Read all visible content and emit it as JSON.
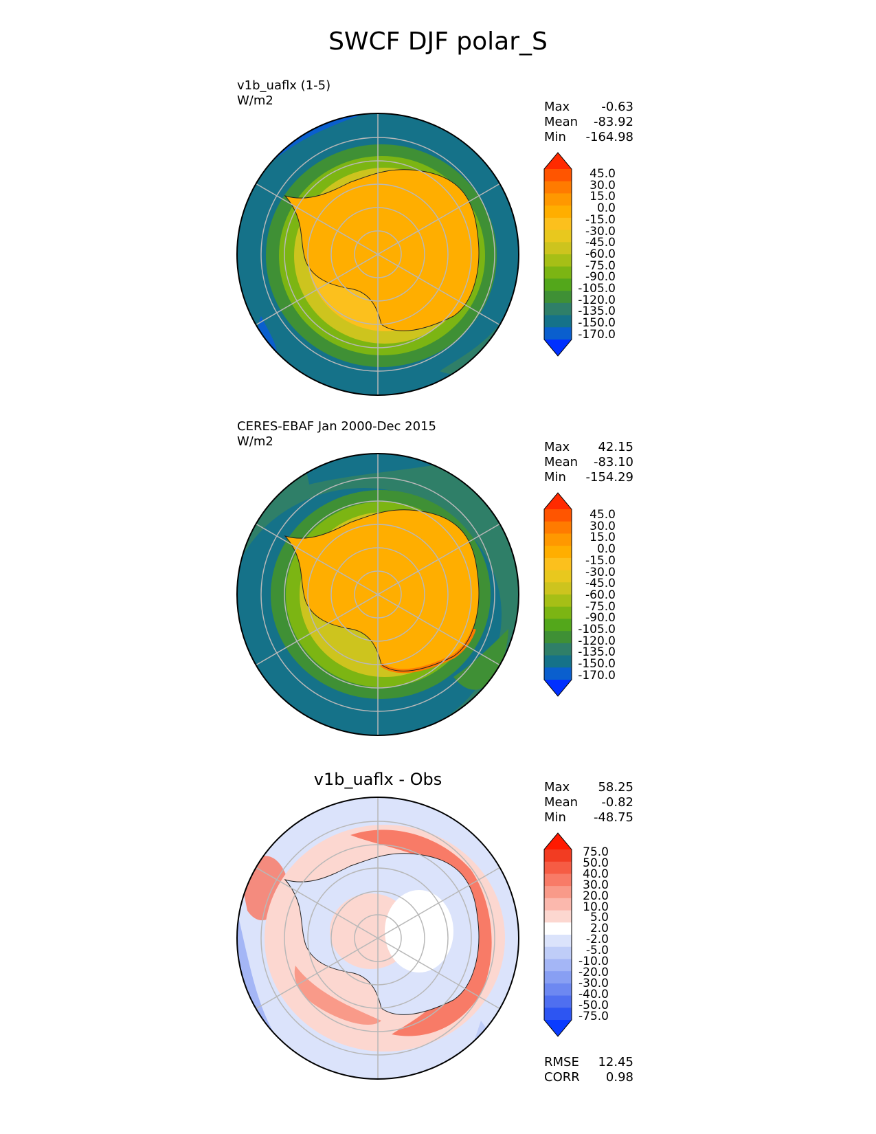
{
  "figure": {
    "title": "SWCF DJF polar_S"
  },
  "panels": [
    {
      "id": "test",
      "label_line1": "v1b_uaflx (1-5)",
      "label_line2": "W/m2",
      "stats": [
        {
          "name": "Max",
          "value": "-0.63"
        },
        {
          "name": "Mean",
          "value": "-83.92"
        },
        {
          "name": "Min",
          "value": "-164.98"
        }
      ],
      "colorbar_ticks": [
        "45.0",
        "30.0",
        "15.0",
        "0.0",
        "-15.0",
        "-30.0",
        "-45.0",
        "-60.0",
        "-75.0",
        "-90.0",
        "-105.0",
        "-120.0",
        "-135.0",
        "-150.0",
        "-170.0"
      ]
    },
    {
      "id": "reference",
      "label_line1": "CERES-EBAF Jan 2000-Dec 2015",
      "label_line2": "W/m2",
      "stats": [
        {
          "name": "Max",
          "value": "42.15"
        },
        {
          "name": "Mean",
          "value": "-83.10"
        },
        {
          "name": "Min",
          "value": "-154.29"
        }
      ],
      "colorbar_ticks": [
        "45.0",
        "30.0",
        "15.0",
        "0.0",
        "-15.0",
        "-30.0",
        "-45.0",
        "-60.0",
        "-75.0",
        "-90.0",
        "-105.0",
        "-120.0",
        "-135.0",
        "-150.0",
        "-170.0"
      ]
    },
    {
      "id": "difference",
      "title": "v1b_uaflx - Obs",
      "stats": [
        {
          "name": "Max",
          "value": "58.25"
        },
        {
          "name": "Mean",
          "value": "-0.82"
        },
        {
          "name": "Min",
          "value": "-48.75"
        }
      ],
      "colorbar_ticks": [
        "75.0",
        "50.0",
        "40.0",
        "30.0",
        "20.0",
        "10.0",
        "5.0",
        "2.0",
        "-2.0",
        "-5.0",
        "-10.0",
        "-20.0",
        "-30.0",
        "-40.0",
        "-50.0",
        "-75.0"
      ],
      "metrics": [
        {
          "name": "RMSE",
          "value": "12.45"
        },
        {
          "name": "CORR",
          "value": "0.98"
        }
      ]
    }
  ],
  "colors": {
    "main_scale": [
      "#ff2a00",
      "#ff5500",
      "#ff7b00",
      "#ff9800",
      "#ffae00",
      "#fcc01d",
      "#e8c81e",
      "#cdc41e",
      "#a6bf16",
      "#7cb513",
      "#53a71b",
      "#3f9035",
      "#2f7f68",
      "#157289",
      "#0a5fce",
      "#0030ff"
    ],
    "diff_scale": [
      "#ff1a00",
      "#f23c22",
      "#f65c44",
      "#f87b67",
      "#f99a89",
      "#fbb8ad",
      "#fcd7d0",
      "#ffffff",
      "#dbe3fb",
      "#bfcdf8",
      "#a4b6f6",
      "#889ff3",
      "#6d88f1",
      "#4f6ff0",
      "#2d55f2",
      "#0a3cff"
    ]
  }
}
